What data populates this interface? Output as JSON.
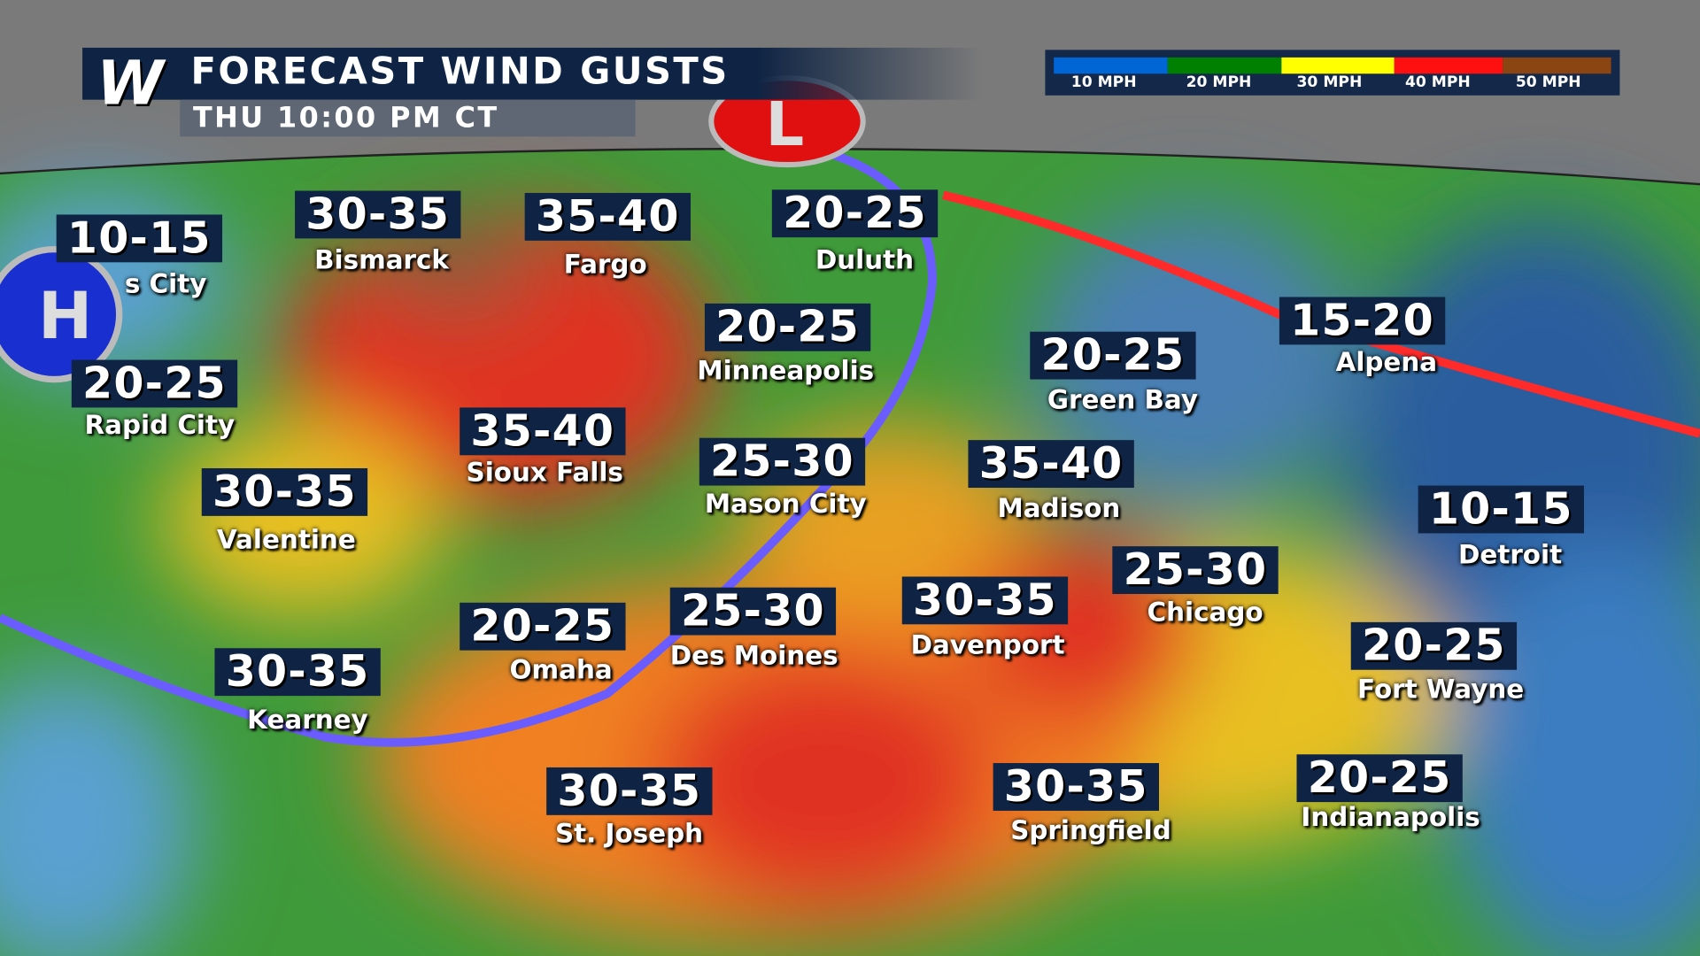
{
  "header": {
    "logo": "W",
    "title": "FORECAST WIND GUSTS",
    "subtitle": "THU 10:00 PM CT"
  },
  "legend": {
    "items": [
      {
        "label": "10 MPH",
        "color": "#0066d6"
      },
      {
        "label": "20 MPH",
        "color": "#008000"
      },
      {
        "label": "30 MPH",
        "color": "#ffff00"
      },
      {
        "label": "40 MPH",
        "color": "#ff1010"
      },
      {
        "label": "50 MPH",
        "color": "#8b4513"
      }
    ]
  },
  "pressure_centers": [
    {
      "type": "H",
      "label": "H",
      "color": "#1a2fd0"
    },
    {
      "type": "L",
      "label": "L",
      "color": "#e01010"
    }
  ],
  "fronts": [
    {
      "type": "cold",
      "color": "#6a5cff"
    },
    {
      "type": "warm",
      "color": "#ff2a2a"
    }
  ],
  "cities": [
    {
      "name": "s City",
      "gusts": "10-15"
    },
    {
      "name": "Bismarck",
      "gusts": "30-35"
    },
    {
      "name": "Fargo",
      "gusts": "35-40"
    },
    {
      "name": "Duluth",
      "gusts": "20-25"
    },
    {
      "name": "Minneapolis",
      "gusts": "20-25"
    },
    {
      "name": "Rapid City",
      "gusts": "20-25"
    },
    {
      "name": "Sioux Falls",
      "gusts": "35-40"
    },
    {
      "name": "Mason City",
      "gusts": "25-30"
    },
    {
      "name": "Green Bay",
      "gusts": "20-25"
    },
    {
      "name": "Alpena",
      "gusts": "15-20"
    },
    {
      "name": "Madison",
      "gusts": "35-40"
    },
    {
      "name": "Valentine",
      "gusts": "30-35"
    },
    {
      "name": "Detroit",
      "gusts": "10-15"
    },
    {
      "name": "Chicago",
      "gusts": "25-30"
    },
    {
      "name": "Davenport",
      "gusts": "30-35"
    },
    {
      "name": "Des Moines",
      "gusts": "25-30"
    },
    {
      "name": "Omaha",
      "gusts": "20-25"
    },
    {
      "name": "Kearney",
      "gusts": "30-35"
    },
    {
      "name": "Fort Wayne",
      "gusts": "20-25"
    },
    {
      "name": "St. Joseph",
      "gusts": "30-35"
    },
    {
      "name": "Springfield",
      "gusts": "30-35"
    },
    {
      "name": "Indianapolis",
      "gusts": "20-25"
    }
  ]
}
